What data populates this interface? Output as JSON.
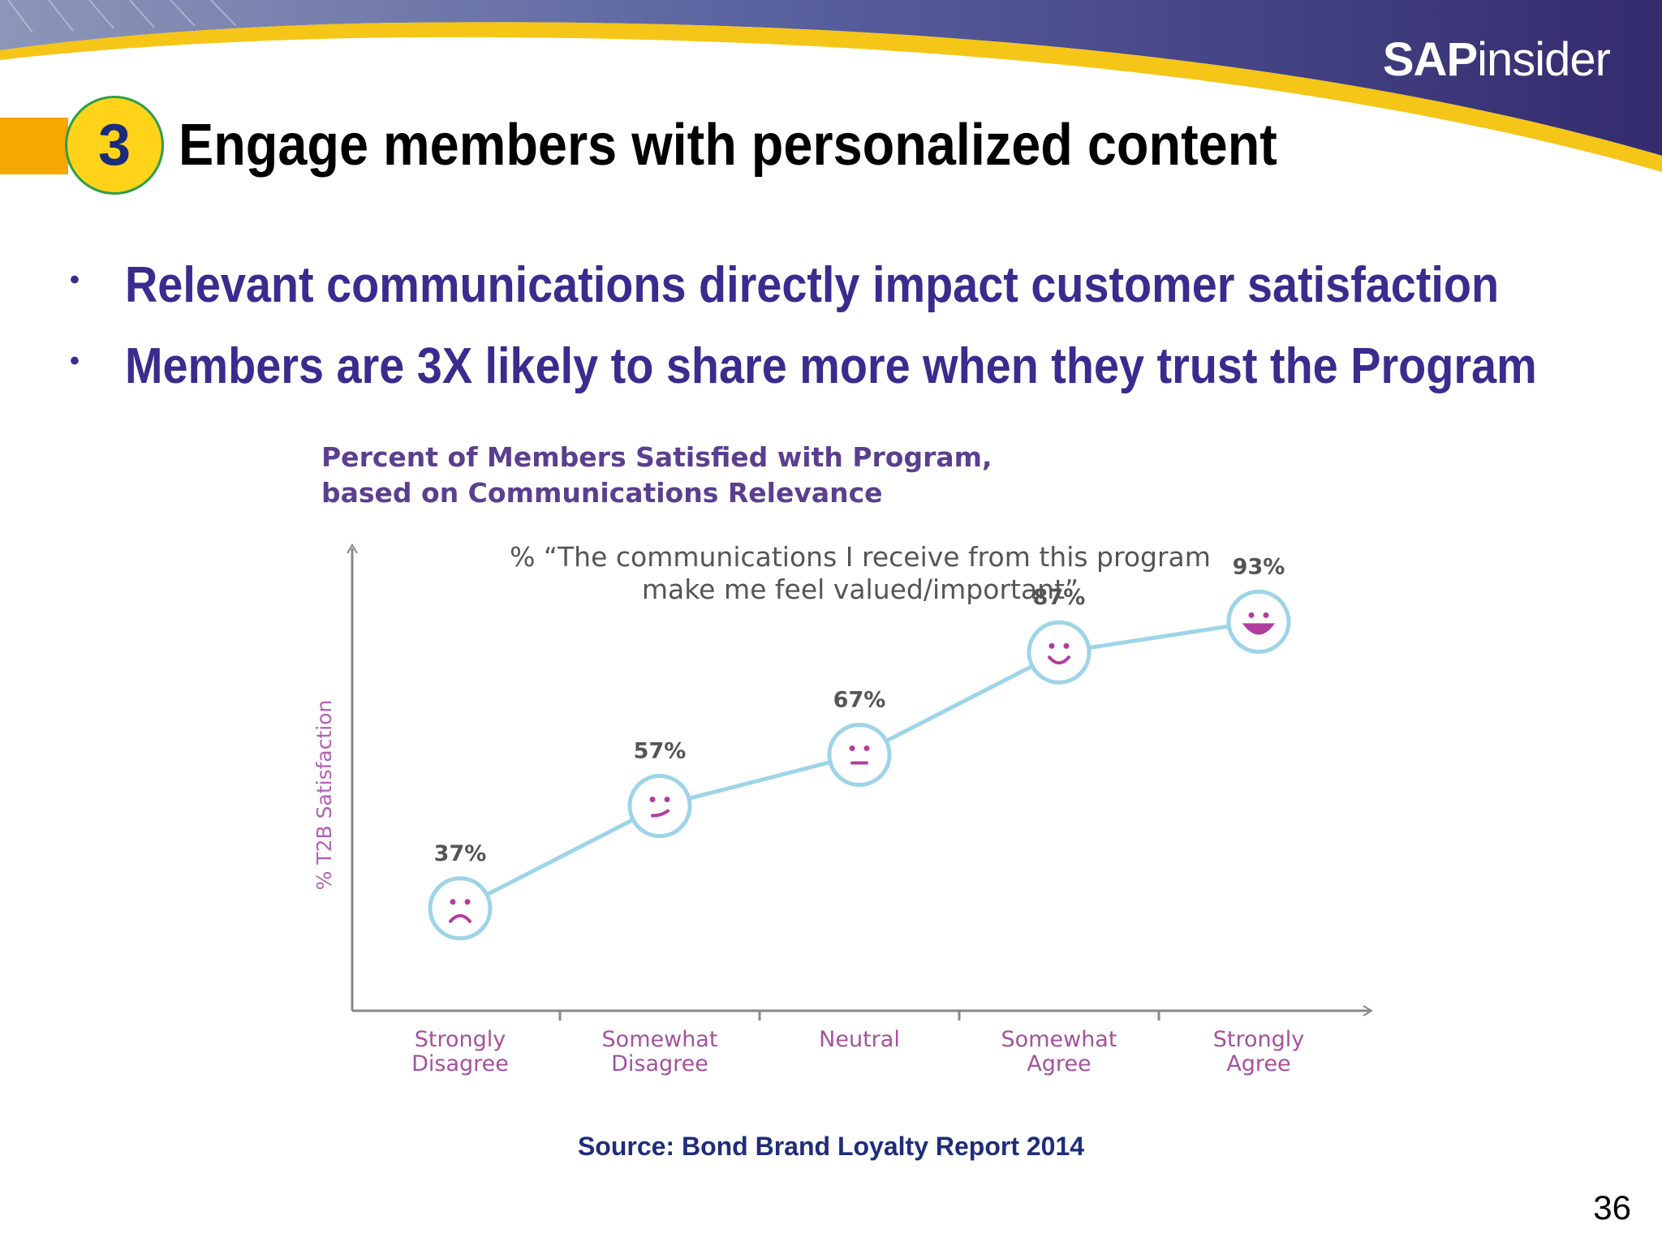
{
  "header": {
    "logo_bold": "SAP",
    "logo_light": "insider",
    "step_number": "3",
    "title": "Engage members with personalized content"
  },
  "bullets": [
    "Relevant communications directly impact customer satisfaction",
    "Members are 3X likely to share more when they trust the Program"
  ],
  "chart_data": {
    "type": "line",
    "title": "Percent of Members Satisfied with Program, based on Communications Relevance",
    "title_lines": [
      "Percent of Members Satisfied with Program,",
      "based on Communications Relevance"
    ],
    "subtitle_lines": [
      "% “The communications I receive from this program",
      "make me feel valued/important”"
    ],
    "ylabel": "% T2B Satisfaction",
    "xlabel": "",
    "categories": [
      [
        "Strongly",
        "Disagree"
      ],
      [
        "Somewhat",
        "Disagree"
      ],
      [
        "Neutral"
      ],
      [
        "Somewhat",
        "Agree"
      ],
      [
        "Strongly",
        "Agree"
      ]
    ],
    "values": [
      37,
      57,
      67,
      87,
      93
    ],
    "data_labels": [
      "37%",
      "57%",
      "67%",
      "87%",
      "93%"
    ],
    "markers": [
      "sad",
      "slightly-smiling",
      "neutral",
      "smiling",
      "big-smile"
    ],
    "ylim": [
      17,
      107
    ],
    "grid": false,
    "legend": "none",
    "colors": {
      "line": "#9dd4e8",
      "marker_fill": "#ffffff",
      "face": "#b13da0",
      "title": "#5b3f8f",
      "axis_label": "#b260b2",
      "category": "#a4519e",
      "data_label": "#555555",
      "axis": "#888888"
    }
  },
  "source": "Source: Bond Brand Loyalty Report 2014",
  "page_number": "36",
  "colors": {
    "header_purple": "#3a3478",
    "header_gold": "#f5c518",
    "step_circle": "#ffd31a",
    "bullet_text": "#3b2b8f",
    "source_text": "#1f2d7a"
  }
}
